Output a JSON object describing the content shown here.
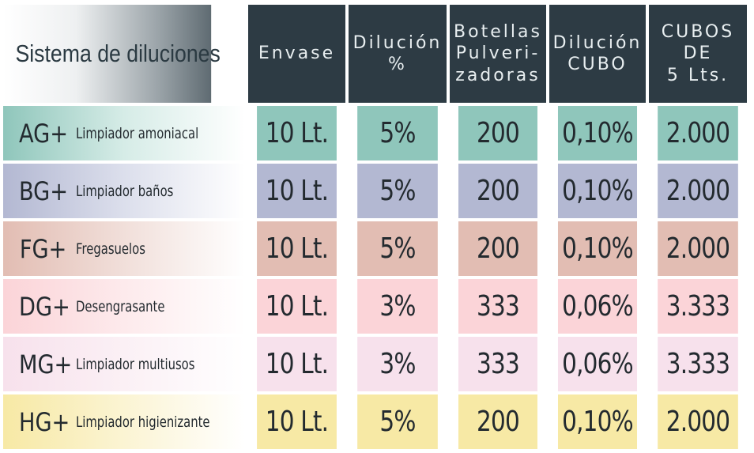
{
  "colors": {
    "header_dark": "#2d3b44",
    "header_gradient_light": "#ffffff",
    "row_ag": "#8fc6bb",
    "row_bg": "#b3b8d2",
    "row_fg": "#e2bdb3",
    "row_dg": "#fbd4d8",
    "row_mg": "#f7e1ec",
    "row_hg": "#f7e9a5"
  },
  "table": {
    "headers": [
      "Sistema de diluciones",
      "Envase",
      "Dilución\n%",
      "Botellas\nPulveri-\nzadoras",
      "Dilución\nCUBO",
      "CUBOS\nDE\n5 Lts."
    ],
    "rows": [
      {
        "code": "AG+",
        "description": "Limpiador amoniacal",
        "envase": "10 Lt.",
        "dilucion": "5%",
        "botellas": "200",
        "dilucion_cubo": "0,10%",
        "cubos": "2.000"
      },
      {
        "code": "BG+",
        "description": "Limpiador baños",
        "envase": "10 Lt.",
        "dilucion": "5%",
        "botellas": "200",
        "dilucion_cubo": "0,10%",
        "cubos": "2.000"
      },
      {
        "code": "FG+",
        "description": "Fregasuelos",
        "envase": "10 Lt.",
        "dilucion": "5%",
        "botellas": "200",
        "dilucion_cubo": "0,10%",
        "cubos": "2.000"
      },
      {
        "code": "DG+",
        "description": "Desengrasante",
        "envase": "10 Lt.",
        "dilucion": "3%",
        "botellas": "333",
        "dilucion_cubo": "0,06%",
        "cubos": "3.333"
      },
      {
        "code": "MG+",
        "description": "Limpiador multiusos",
        "envase": "10 Lt.",
        "dilucion": "3%",
        "botellas": "333",
        "dilucion_cubo": "0,06%",
        "cubos": "3.333"
      },
      {
        "code": "HG+",
        "description": "Limpiador higienizante",
        "envase": "10 Lt.",
        "dilucion": "5%",
        "botellas": "200",
        "dilucion_cubo": "0,10%",
        "cubos": "2.000"
      }
    ]
  }
}
